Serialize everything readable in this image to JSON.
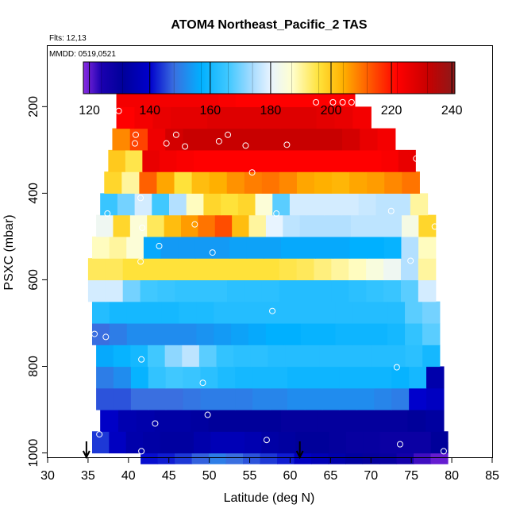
{
  "chart_data": {
    "type": "heatmap",
    "title": "ATOM4 Northeast_Pacific_2 TAS",
    "annotations": {
      "flights": "Flts: 12,13",
      "dates": "MMDD: 0519,0521"
    },
    "xlabel": "Latitude (deg N)",
    "ylabel": "PSXC (mbar)",
    "xlim": [
      30,
      85
    ],
    "ylim": [
      1010,
      60
    ],
    "y_reversed": true,
    "x_ticks": [
      30,
      35,
      40,
      45,
      50,
      55,
      60,
      65,
      70,
      75,
      80,
      85
    ],
    "y_ticks": [
      200,
      400,
      600,
      800,
      1000
    ],
    "colorbar": {
      "min": 118,
      "max": 241,
      "ticks": [
        120,
        140,
        160,
        180,
        200,
        220,
        240
      ],
      "stops": [
        {
          "v": 118,
          "c": "#8a2be2"
        },
        {
          "v": 124,
          "c": "#1a00b0"
        },
        {
          "v": 131,
          "c": "#00009a"
        },
        {
          "v": 140,
          "c": "#0000cc"
        },
        {
          "v": 148,
          "c": "#3a6fe0"
        },
        {
          "v": 157,
          "c": "#00b0ff"
        },
        {
          "v": 166,
          "c": "#40c8ff"
        },
        {
          "v": 174,
          "c": "#a8dcff"
        },
        {
          "v": 180,
          "c": "#e8f4ff"
        },
        {
          "v": 187,
          "c": "#ffffd0"
        },
        {
          "v": 196,
          "c": "#ffe23a"
        },
        {
          "v": 204,
          "c": "#ffb000"
        },
        {
          "v": 212,
          "c": "#ff6000"
        },
        {
          "v": 222,
          "c": "#ff0000"
        },
        {
          "v": 232,
          "c": "#c80000"
        },
        {
          "v": 241,
          "c": "#8b1a1a"
        }
      ]
    },
    "rows": [
      {
        "p": 1000,
        "x0": 41.5,
        "x1": 79.5,
        "v": [
          141,
          142,
          144,
          147,
          150,
          148,
          146,
          144,
          142,
          138,
          136,
          134,
          132,
          130,
          129,
          126,
          122,
          120
        ]
      },
      {
        "p": 975,
        "x0": 35.5,
        "x1": 79.5,
        "v": [
          144,
          138,
          134,
          133,
          132,
          132,
          134,
          136,
          136,
          135,
          133,
          132,
          131,
          131,
          130,
          129,
          129,
          128,
          128,
          128,
          131
        ]
      },
      {
        "p": 925,
        "x0": 36.5,
        "x1": 79.0,
        "v": [
          139,
          135,
          134,
          133,
          133,
          132,
          131,
          131,
          131,
          131,
          130,
          130,
          130,
          130,
          130,
          130,
          130,
          131,
          132
        ]
      },
      {
        "p": 875,
        "x0": 36.0,
        "x1": 79.0,
        "v": [
          146,
          146,
          148,
          148,
          148,
          149,
          150,
          150,
          150,
          151,
          151,
          152,
          152,
          152,
          152,
          152,
          151,
          150,
          140,
          138
        ]
      },
      {
        "p": 825,
        "x0": 36.0,
        "x1": 79.0,
        "v": [
          150,
          152,
          158,
          164,
          166,
          165,
          163,
          161,
          160,
          160,
          160,
          159,
          159,
          159,
          159,
          159,
          159,
          158,
          160,
          134
        ]
      },
      {
        "p": 775,
        "x0": 36.0,
        "x1": 78.5,
        "v": [
          156,
          158,
          160,
          166,
          172,
          176,
          168,
          164,
          163,
          163,
          162,
          162,
          162,
          162,
          162,
          162,
          162,
          162,
          163,
          160
        ]
      },
      {
        "p": 725,
        "x0": 35.5,
        "x1": 78.5,
        "v": [
          148,
          150,
          152,
          152,
          152,
          152,
          153,
          154,
          155,
          156,
          157,
          157,
          158,
          158,
          159,
          159,
          159,
          160,
          164,
          168
        ]
      },
      {
        "p": 675,
        "x0": 35.5,
        "x1": 78.5,
        "v": [
          162,
          160,
          160,
          160,
          160,
          161,
          161,
          162,
          162,
          162,
          162,
          162,
          162,
          162,
          162,
          162,
          162,
          162,
          168,
          170
        ]
      },
      {
        "p": 625,
        "x0": 35.0,
        "x1": 78.0,
        "v": [
          178,
          178,
          170,
          166,
          165,
          164,
          164,
          164,
          163,
          163,
          163,
          162,
          162,
          162,
          162,
          163,
          164,
          165,
          168,
          178
        ]
      },
      {
        "p": 575,
        "x0": 35.0,
        "x1": 78.0,
        "v": [
          194,
          194,
          196,
          196,
          196,
          196,
          196,
          196,
          196,
          196,
          196,
          195,
          194,
          192,
          190,
          188,
          185,
          182,
          175,
          190
        ]
      },
      {
        "p": 525,
        "x0": 35.5,
        "x1": 78.0,
        "v": [
          188,
          190,
          186,
          156,
          154,
          154,
          154,
          154,
          155,
          155,
          155,
          156,
          156,
          156,
          156,
          157,
          157,
          158,
          175,
          188
        ]
      },
      {
        "p": 475,
        "x0": 36.0,
        "x1": 78.0,
        "v": [
          182,
          198,
          186,
          194,
          202,
          206,
          210,
          214,
          202,
          190,
          180,
          176,
          175,
          175,
          175,
          176,
          176,
          176,
          184,
          198
        ]
      },
      {
        "p": 425,
        "x0": 36.5,
        "x1": 77.0,
        "v": [
          165,
          170,
          178,
          166,
          175,
          188,
          198,
          196,
          198,
          186,
          168,
          178,
          178,
          178,
          178,
          177,
          176,
          176,
          190
        ]
      },
      {
        "p": 375,
        "x0": 37.0,
        "x1": 76.0,
        "v": [
          198,
          190,
          212,
          205,
          196,
          202,
          204,
          207,
          209,
          210,
          208,
          205,
          204,
          203,
          205,
          206,
          208,
          210
        ]
      },
      {
        "p": 325,
        "x0": 37.5,
        "x1": 75.5,
        "v": [
          200,
          195,
          226,
          224,
          223,
          222,
          222,
          222,
          222,
          222,
          222,
          222,
          222,
          222,
          222,
          222,
          223,
          226
        ]
      },
      {
        "p": 275,
        "x0": 38.0,
        "x1": 73.0,
        "v": [
          208,
          215,
          225,
          230,
          232,
          232,
          232,
          232,
          232,
          232,
          232,
          232,
          232,
          230,
          226,
          224
        ]
      },
      {
        "p": 225,
        "x0": 38.5,
        "x1": 70.0,
        "v": [
          222,
          224,
          226,
          227,
          227,
          228,
          228,
          228,
          228,
          228,
          228,
          227,
          226,
          224
        ]
      },
      {
        "p": 175,
        "x0": 38.5,
        "x1": 68.0,
        "v": [
          224,
          224,
          224,
          224,
          224,
          224,
          223,
          222,
          222,
          222,
          222,
          222,
          222,
          222
        ]
      }
    ],
    "flight_points": [
      {
        "lat": 38.8,
        "p": 210
      },
      {
        "lat": 66.5,
        "p": 190
      },
      {
        "lat": 63.2,
        "p": 190
      },
      {
        "lat": 65.3,
        "p": 190
      },
      {
        "lat": 67.6,
        "p": 190
      },
      {
        "lat": 40.9,
        "p": 265
      },
      {
        "lat": 40.8,
        "p": 285
      },
      {
        "lat": 45.9,
        "p": 265
      },
      {
        "lat": 47.0,
        "p": 292
      },
      {
        "lat": 44.7,
        "p": 285
      },
      {
        "lat": 51.2,
        "p": 280
      },
      {
        "lat": 52.3,
        "p": 265
      },
      {
        "lat": 54.5,
        "p": 290
      },
      {
        "lat": 59.6,
        "p": 288
      },
      {
        "lat": 75.6,
        "p": 320
      },
      {
        "lat": 55.3,
        "p": 352
      },
      {
        "lat": 41.5,
        "p": 411
      },
      {
        "lat": 37.4,
        "p": 447
      },
      {
        "lat": 58.3,
        "p": 447
      },
      {
        "lat": 72.5,
        "p": 441
      },
      {
        "lat": 41.7,
        "p": 480
      },
      {
        "lat": 48.2,
        "p": 472
      },
      {
        "lat": 77.9,
        "p": 477
      },
      {
        "lat": 43.8,
        "p": 522
      },
      {
        "lat": 50.4,
        "p": 537
      },
      {
        "lat": 41.5,
        "p": 558
      },
      {
        "lat": 74.9,
        "p": 556
      },
      {
        "lat": 57.8,
        "p": 672
      },
      {
        "lat": 35.8,
        "p": 725
      },
      {
        "lat": 37.2,
        "p": 732
      },
      {
        "lat": 41.6,
        "p": 784
      },
      {
        "lat": 73.2,
        "p": 802
      },
      {
        "lat": 49.2,
        "p": 838
      },
      {
        "lat": 49.8,
        "p": 912
      },
      {
        "lat": 43.3,
        "p": 932
      },
      {
        "lat": 36.4,
        "p": 957
      },
      {
        "lat": 57.1,
        "p": 970
      },
      {
        "lat": 73.6,
        "p": 980
      },
      {
        "lat": 41.6,
        "p": 996
      },
      {
        "lat": 79.0,
        "p": 996
      }
    ],
    "arrows": [
      {
        "lat": 34.8
      },
      {
        "lat": 61.2
      }
    ]
  }
}
